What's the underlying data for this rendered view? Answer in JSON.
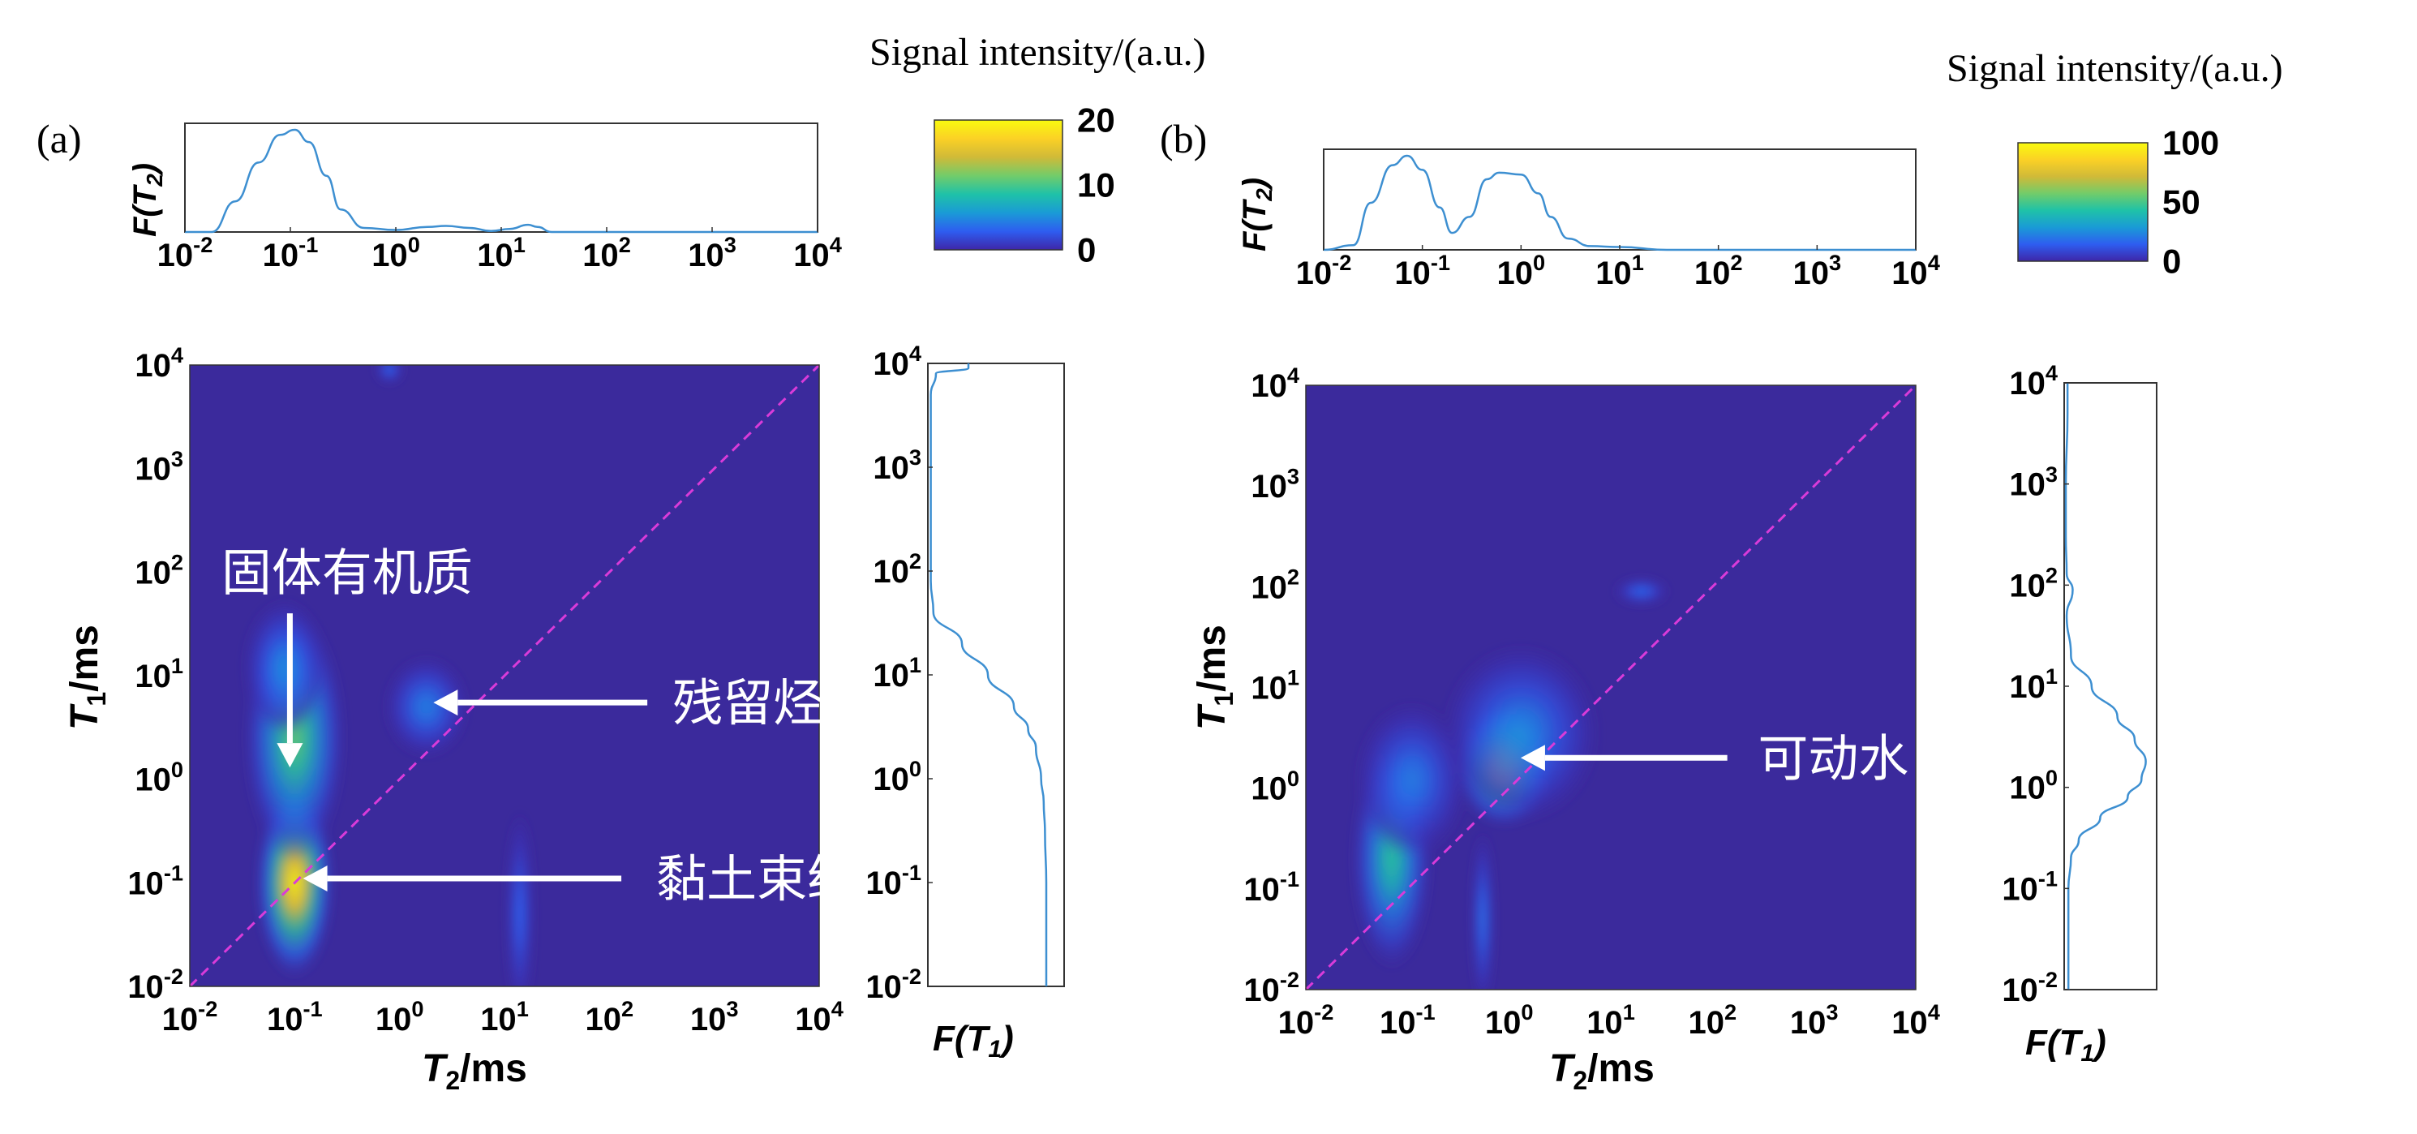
{
  "colors": {
    "line": "#3d8fd1",
    "diagonal": "#d93bd9",
    "background_map": "#3b2a9c",
    "arrow": "#ffffff",
    "colormap": [
      "#3e26a8",
      "#2e5df0",
      "#1a9bd6",
      "#1fc2a8",
      "#72cc6a",
      "#d0ba38",
      "#fbd125",
      "#f9fb0e"
    ]
  },
  "colorbar_title": "Signal intensity/(a.u.)",
  "chart_data": [
    {
      "panel_label": "(a)",
      "type": "heatmap",
      "xlabel_T2": "T",
      "xlabel_sub": "2",
      "xlabel_unit": "/ms",
      "ylabel_T1": "T",
      "ylabel_sub": "1",
      "ylabel_unit": "/ms",
      "x_scale": "log",
      "y_scale": "log",
      "xlim": [
        0.01,
        10000
      ],
      "ylim": [
        0.01,
        10000
      ],
      "ticks": [
        "10^-2",
        "10^-1",
        "10^0",
        "10^1",
        "10^2",
        "10^3",
        "10^4"
      ],
      "colorbar": {
        "min": 0,
        "max": 20,
        "ticks": [
          "20",
          "10",
          "0"
        ]
      },
      "top_marginal_label": "F(T2)",
      "right_marginal_label": "F(T1)",
      "blobs": [
        {
          "t2": 0.1,
          "t1": 0.1,
          "sx": 0.17,
          "sy": 0.42,
          "amp": 20
        },
        {
          "t2": 0.1,
          "t1": 2.5,
          "sx": 0.22,
          "sy": 0.55,
          "amp": 11
        },
        {
          "t2": 0.08,
          "t1": 12,
          "sx": 0.18,
          "sy": 0.3,
          "amp": 5
        },
        {
          "t2": 1.8,
          "t1": 5,
          "sx": 0.18,
          "sy": 0.22,
          "amp": 4.5
        },
        {
          "t2": 14,
          "t1": 0.05,
          "sx": 0.06,
          "sy": 0.45,
          "amp": 3.2
        },
        {
          "t2": 0.8,
          "t1": 9000,
          "sx": 0.06,
          "sy": 0.06,
          "amp": 3.5
        }
      ],
      "t2_distribution": {
        "x": [
          0.01,
          0.018,
          0.03,
          0.05,
          0.08,
          0.11,
          0.15,
          0.22,
          0.3,
          0.5,
          1,
          2,
          3,
          5,
          8,
          12,
          18,
          22,
          30,
          100,
          1000,
          10000
        ],
        "y": [
          0,
          0.0,
          0.3,
          0.68,
          0.95,
          1.0,
          0.88,
          0.55,
          0.22,
          0.04,
          0.02,
          0.05,
          0.06,
          0.04,
          0.01,
          0.03,
          0.07,
          0.05,
          0.0,
          0,
          0,
          0
        ]
      },
      "t1_distribution": {
        "y": [
          0.01,
          0.05,
          0.1,
          0.3,
          0.6,
          1,
          2,
          3,
          5,
          10,
          20,
          40,
          80,
          200,
          1000,
          5000,
          8000,
          9000,
          10000
        ],
        "x": [
          0.9,
          0.9,
          0.9,
          0.89,
          0.88,
          0.86,
          0.82,
          0.76,
          0.65,
          0.45,
          0.25,
          0.03,
          0.01,
          0.01,
          0.01,
          0.01,
          0.05,
          0.3,
          0.3
        ]
      },
      "annotations": [
        {
          "text": "固体有机质",
          "arrow_from": [
            0.09,
            40
          ],
          "arrow_to": [
            0.09,
            1.3
          ],
          "label_t2": 0.02,
          "label_t1": 100
        },
        {
          "text": "残留烃",
          "arrow_from": [
            230,
            5.5
          ],
          "arrow_to": [
            2.1,
            5.5
          ],
          "label_t2": 400,
          "label_t1": 5.5
        },
        {
          "text": "黏土束缚水",
          "arrow_from": [
            130,
            0.11
          ],
          "arrow_to": [
            0.12,
            0.11
          ],
          "label_t2": 280,
          "label_t1": 0.11
        }
      ]
    },
    {
      "panel_label": "(b)",
      "type": "heatmap",
      "xlabel_T2": "T",
      "xlabel_sub": "2",
      "xlabel_unit": "/ms",
      "ylabel_T1": "T",
      "ylabel_sub": "1",
      "ylabel_unit": "/ms",
      "x_scale": "log",
      "y_scale": "log",
      "xlim": [
        0.01,
        10000
      ],
      "ylim": [
        0.01,
        10000
      ],
      "ticks": [
        "10^-2",
        "10^-1",
        "10^0",
        "10^1",
        "10^2",
        "10^3",
        "10^4"
      ],
      "colorbar": {
        "min": 0,
        "max": 100,
        "ticks": [
          "100",
          "50",
          "0"
        ]
      },
      "top_marginal_label": "F(T2)",
      "right_marginal_label": "F(T1)",
      "blobs": [
        {
          "t2": 0.9,
          "t1": 1.7,
          "sx": 0.22,
          "sy": 0.28,
          "amp": 100
        },
        {
          "t2": 1.3,
          "t1": 3.5,
          "sx": 0.35,
          "sy": 0.4,
          "amp": 25
        },
        {
          "t2": 0.07,
          "t1": 0.2,
          "sx": 0.18,
          "sy": 0.5,
          "amp": 45
        },
        {
          "t2": 0.11,
          "t1": 1.2,
          "sx": 0.25,
          "sy": 0.35,
          "amp": 22
        },
        {
          "t2": 0.55,
          "t1": 0.05,
          "sx": 0.05,
          "sy": 0.4,
          "amp": 20
        },
        {
          "t2": 20,
          "t1": 90,
          "sx": 0.12,
          "sy": 0.06,
          "amp": 18
        }
      ],
      "t2_distribution": {
        "x": [
          0.01,
          0.02,
          0.03,
          0.05,
          0.07,
          0.1,
          0.15,
          0.2,
          0.3,
          0.45,
          0.6,
          1,
          1.5,
          2,
          3,
          5,
          10,
          30,
          100,
          1000,
          10000
        ],
        "y": [
          0,
          0.05,
          0.5,
          0.9,
          1.0,
          0.85,
          0.45,
          0.18,
          0.35,
          0.75,
          0.82,
          0.8,
          0.6,
          0.35,
          0.12,
          0.04,
          0.03,
          0.0,
          0,
          0,
          0
        ]
      },
      "t1_distribution": {
        "y": [
          0.01,
          0.05,
          0.1,
          0.2,
          0.3,
          0.5,
          0.8,
          1.2,
          1.8,
          3,
          5,
          10,
          20,
          50,
          90,
          130,
          300,
          1000,
          5000,
          10000
        ],
        "x": [
          0.03,
          0.03,
          0.03,
          0.06,
          0.15,
          0.4,
          0.72,
          0.88,
          0.93,
          0.8,
          0.6,
          0.3,
          0.06,
          0.01,
          0.08,
          0.01,
          0.0,
          0.0,
          0.02,
          0.02
        ]
      },
      "annotations": [
        {
          "text": "可动水",
          "arrow_from": [
            140,
            2
          ],
          "arrow_to": [
            1.3,
            2
          ],
          "label_t2": 280,
          "label_t1": 2
        }
      ]
    }
  ]
}
